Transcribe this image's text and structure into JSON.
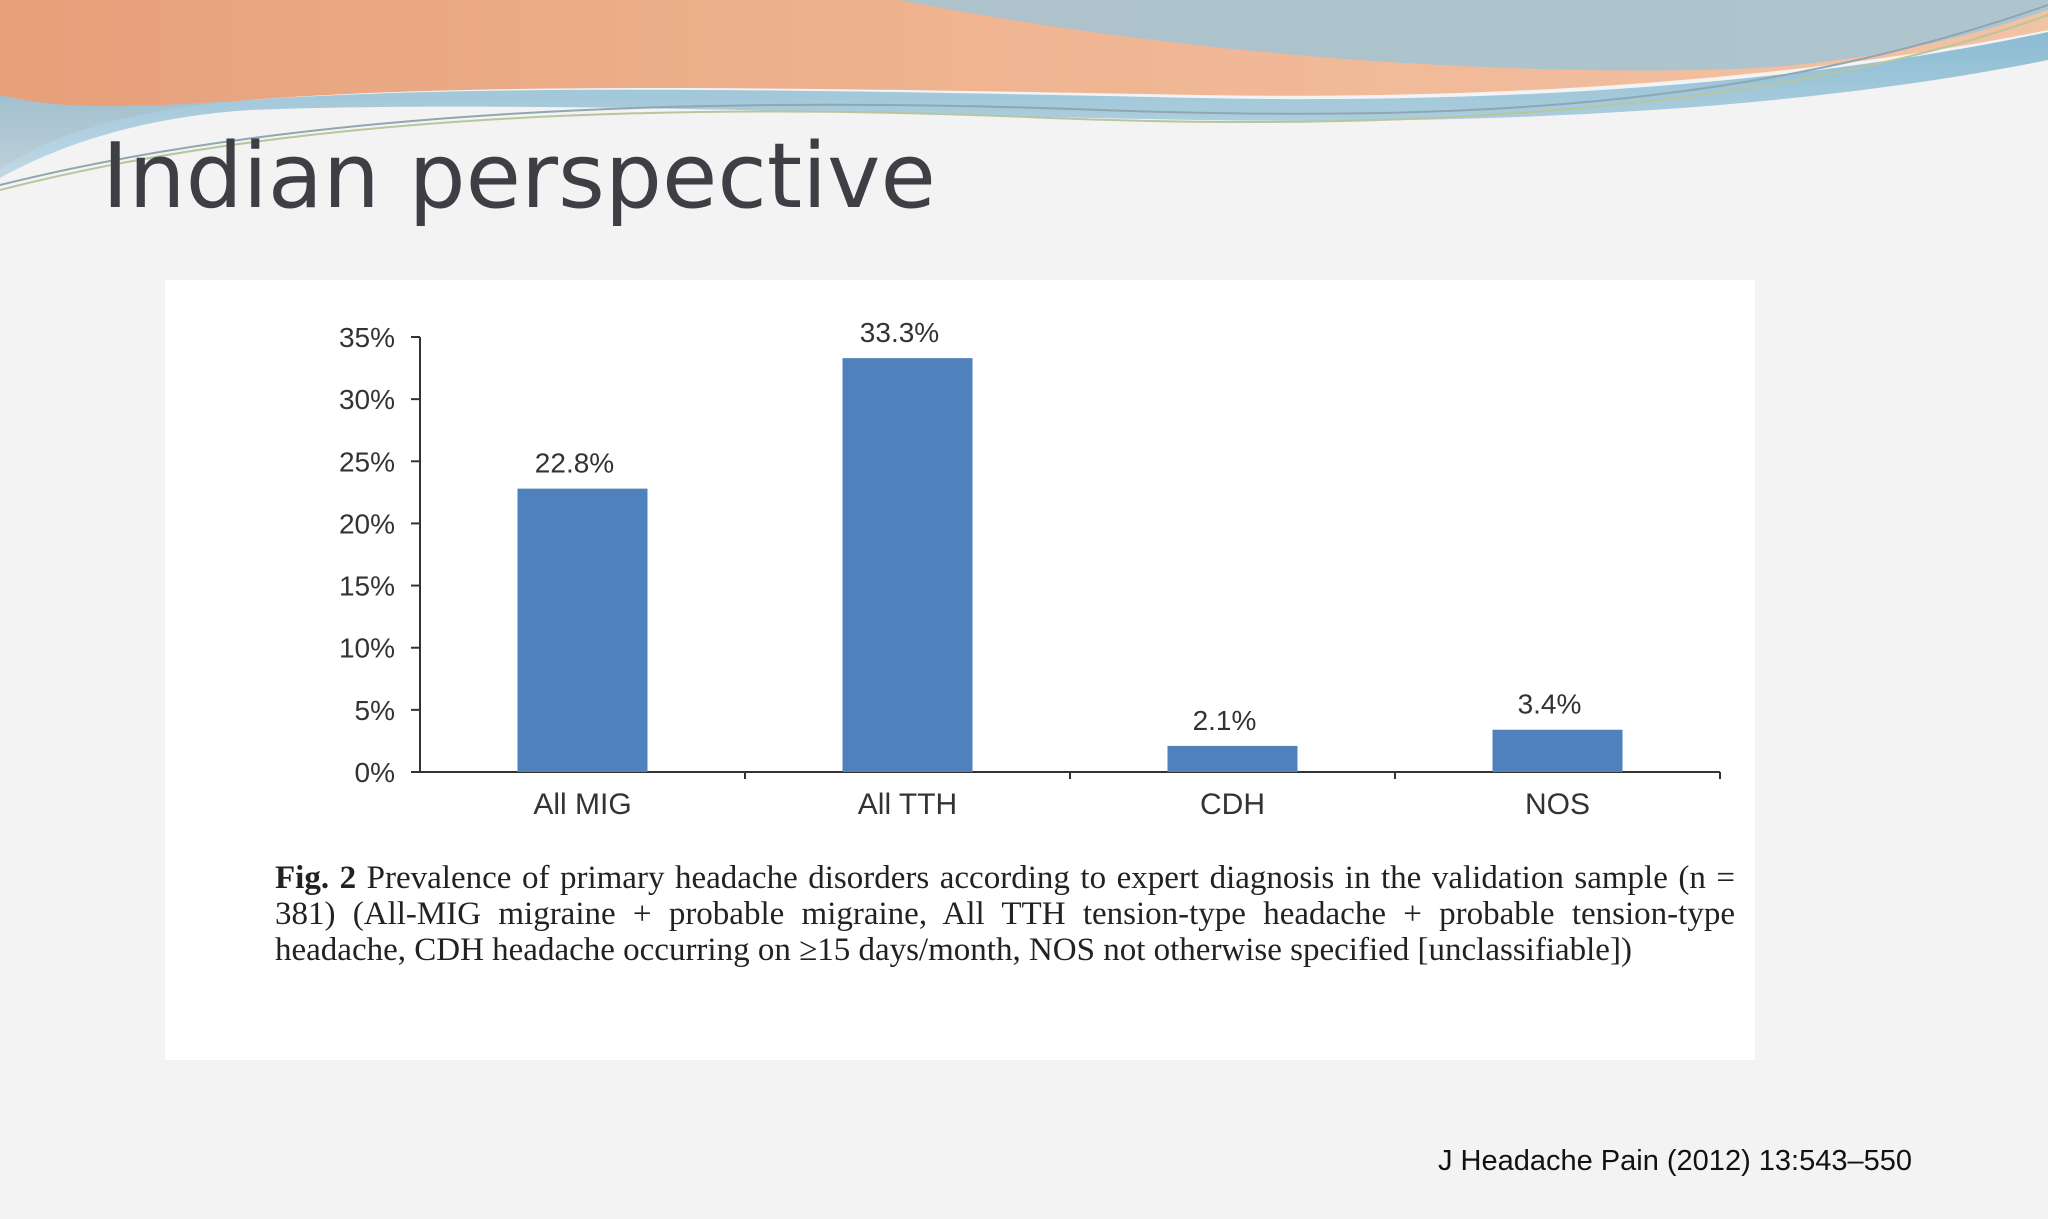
{
  "slide": {
    "title": "Indian perspective",
    "citation": "J Headache Pain (2012) 13:543–550"
  },
  "caption": {
    "label": "Fig. 2",
    "text": "Prevalence of primary headache disorders according to expert diagnosis in the validation sample (n = 381) (All-MIG migraine + probable migraine, All TTH tension-type headache + probable tension-type headache, CDH headache occurring on ≥15 days/month, NOS not otherwise specified [unclassifiable])"
  },
  "colors": {
    "bar": "#4f81bd",
    "axis": "#333333",
    "text": "#333333",
    "title": "#3d3f44"
  },
  "chart_data": {
    "type": "bar",
    "title": "",
    "xlabel": "",
    "ylabel": "",
    "categories": [
      "All MIG",
      "All TTH",
      "CDH",
      "NOS"
    ],
    "values": [
      22.8,
      33.3,
      2.1,
      3.4
    ],
    "data_labels": [
      "22.8%",
      "33.3%",
      "2.1%",
      "3.4%"
    ],
    "ylim": [
      0,
      35
    ],
    "yticks": [
      0,
      5,
      10,
      15,
      20,
      25,
      30,
      35
    ],
    "ytick_labels": [
      "0%",
      "5%",
      "10%",
      "15%",
      "20%",
      "25%",
      "30%",
      "35%"
    ],
    "grid": false,
    "legend": "none"
  }
}
